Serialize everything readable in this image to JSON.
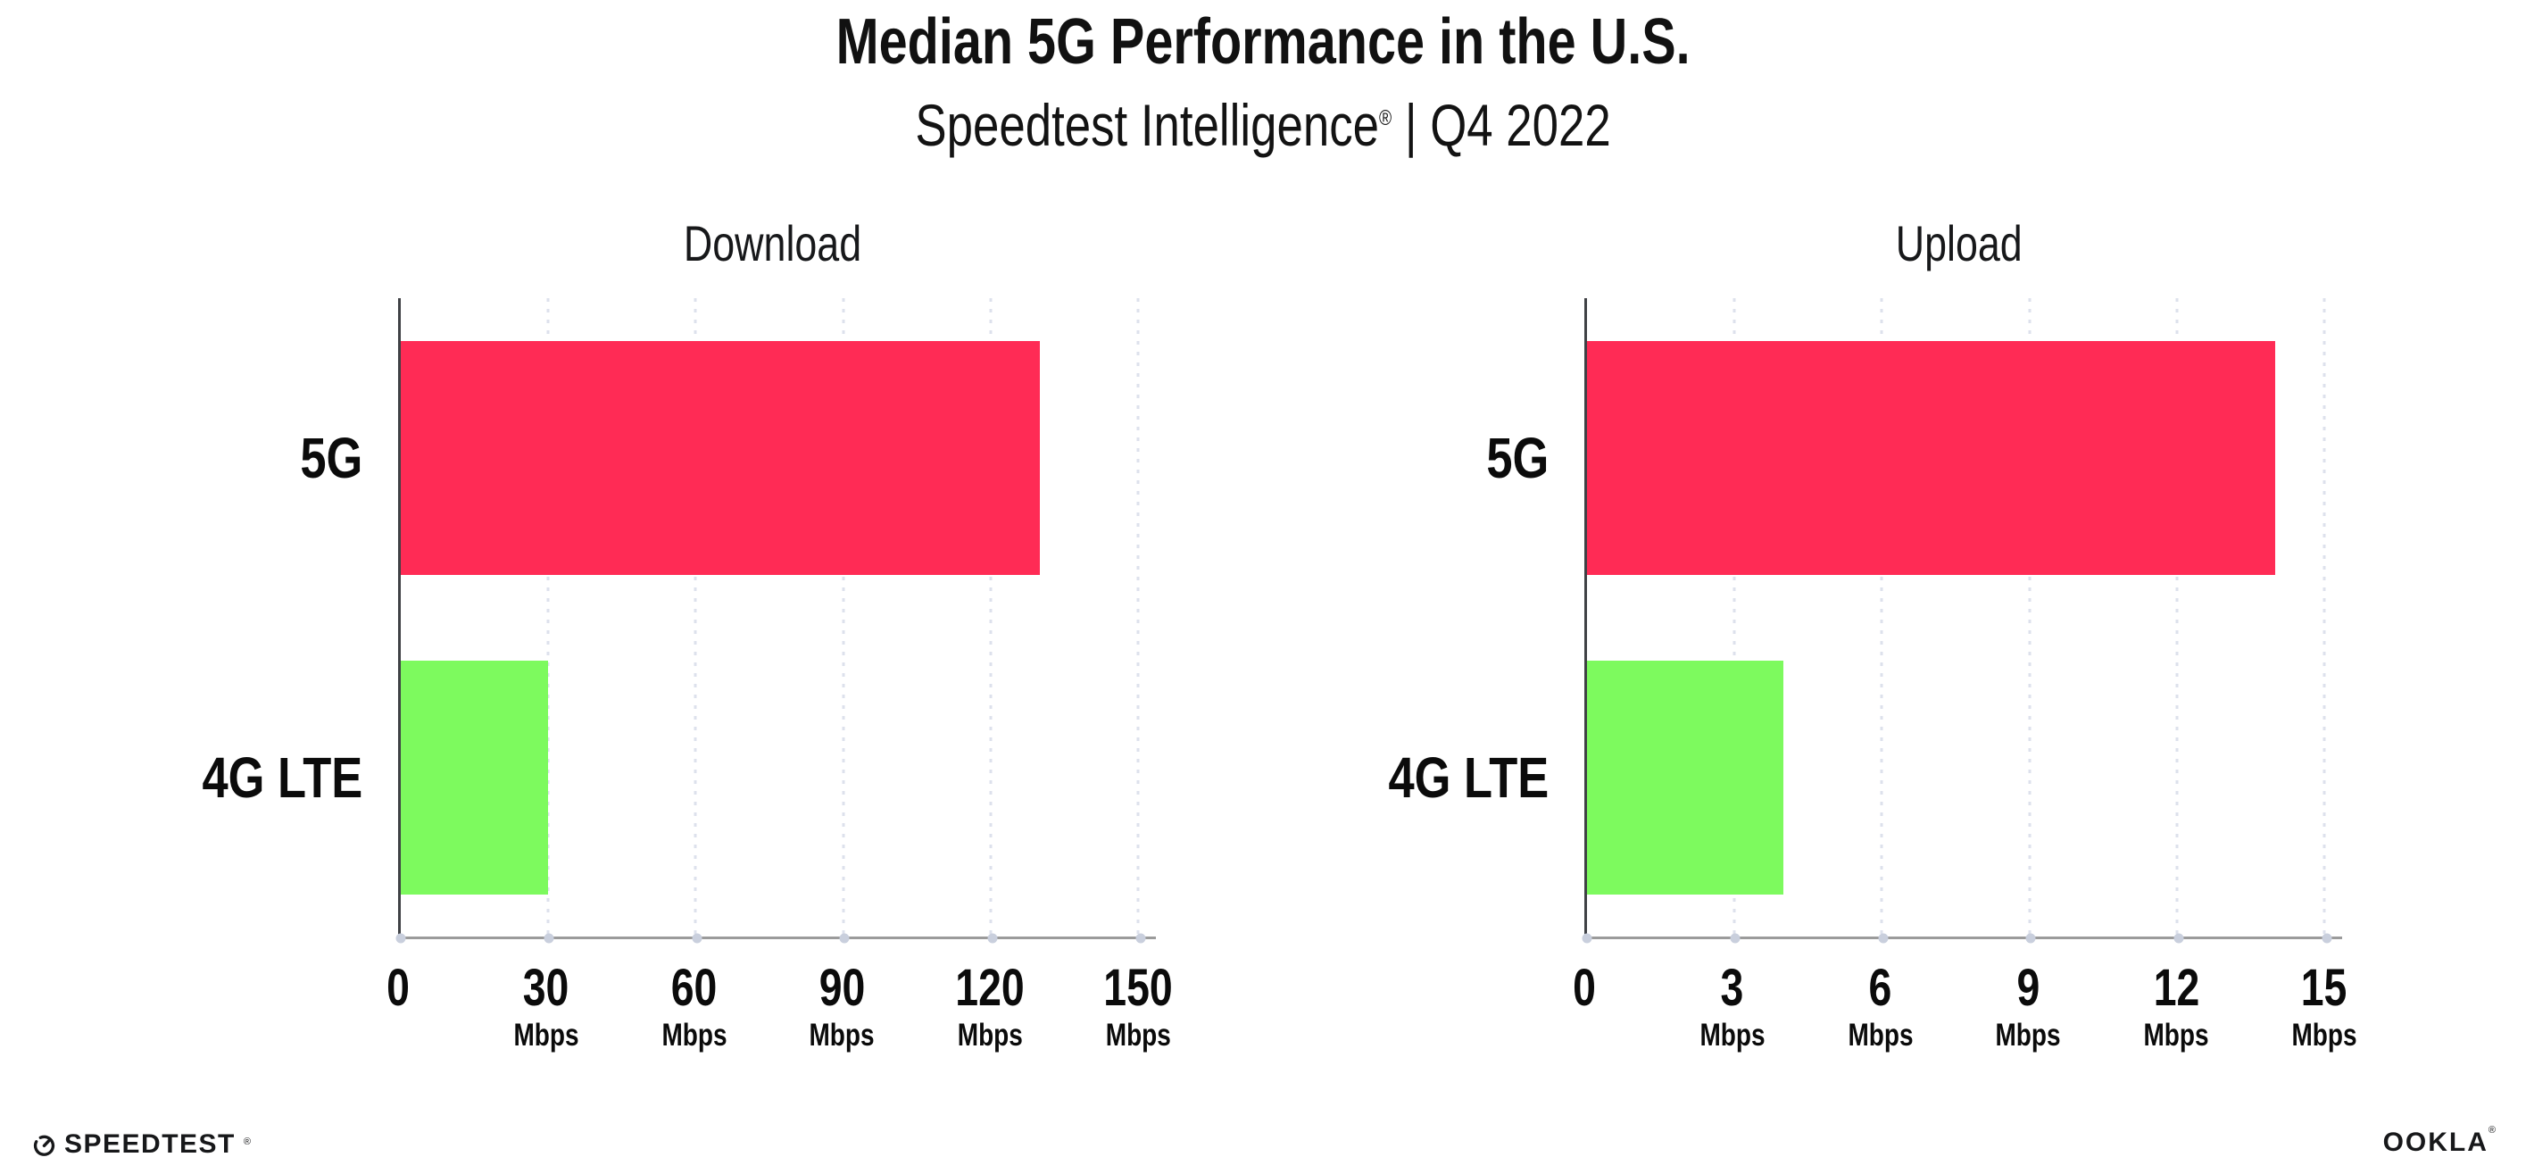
{
  "header": {
    "title": "Median 5G Performance in the U.S.",
    "subtitle_brand": "Speedtest Intelligence",
    "subtitle_reg": "®",
    "subtitle_rest": " | Q4 2022"
  },
  "chart_data": [
    {
      "type": "bar",
      "orientation": "horizontal",
      "title": "Download",
      "categories": [
        "5G",
        "4G LTE"
      ],
      "values": [
        130,
        30
      ],
      "unit": "Mbps",
      "xticks": [
        0,
        30,
        60,
        90,
        120,
        150
      ],
      "xlim": [
        0,
        152
      ],
      "bar_colors": [
        "#FF2B55",
        "#7DFA5E"
      ],
      "grid": "dotted-vertical",
      "legend": "none"
    },
    {
      "type": "bar",
      "orientation": "horizontal",
      "title": "Upload",
      "categories": [
        "5G",
        "4G LTE"
      ],
      "values": [
        14,
        4
      ],
      "unit": "Mbps",
      "xticks": [
        0,
        3,
        6,
        9,
        12,
        15
      ],
      "xlim": [
        0,
        15.2
      ],
      "bar_colors": [
        "#FF2B55",
        "#7DFA5E"
      ],
      "grid": "dotted-vertical",
      "legend": "none"
    }
  ],
  "footer": {
    "speedtest_label": "SPEEDTEST",
    "speedtest_mark": "®",
    "ookla_label": "OOKLA",
    "ookla_mark": "®"
  },
  "colors": {
    "bar_5g": "#FF2B55",
    "bar_4g_lte": "#7DFA5E",
    "axis_line": "#9B9B9B",
    "gridline": "#DDE1EC",
    "text": "#111111"
  }
}
